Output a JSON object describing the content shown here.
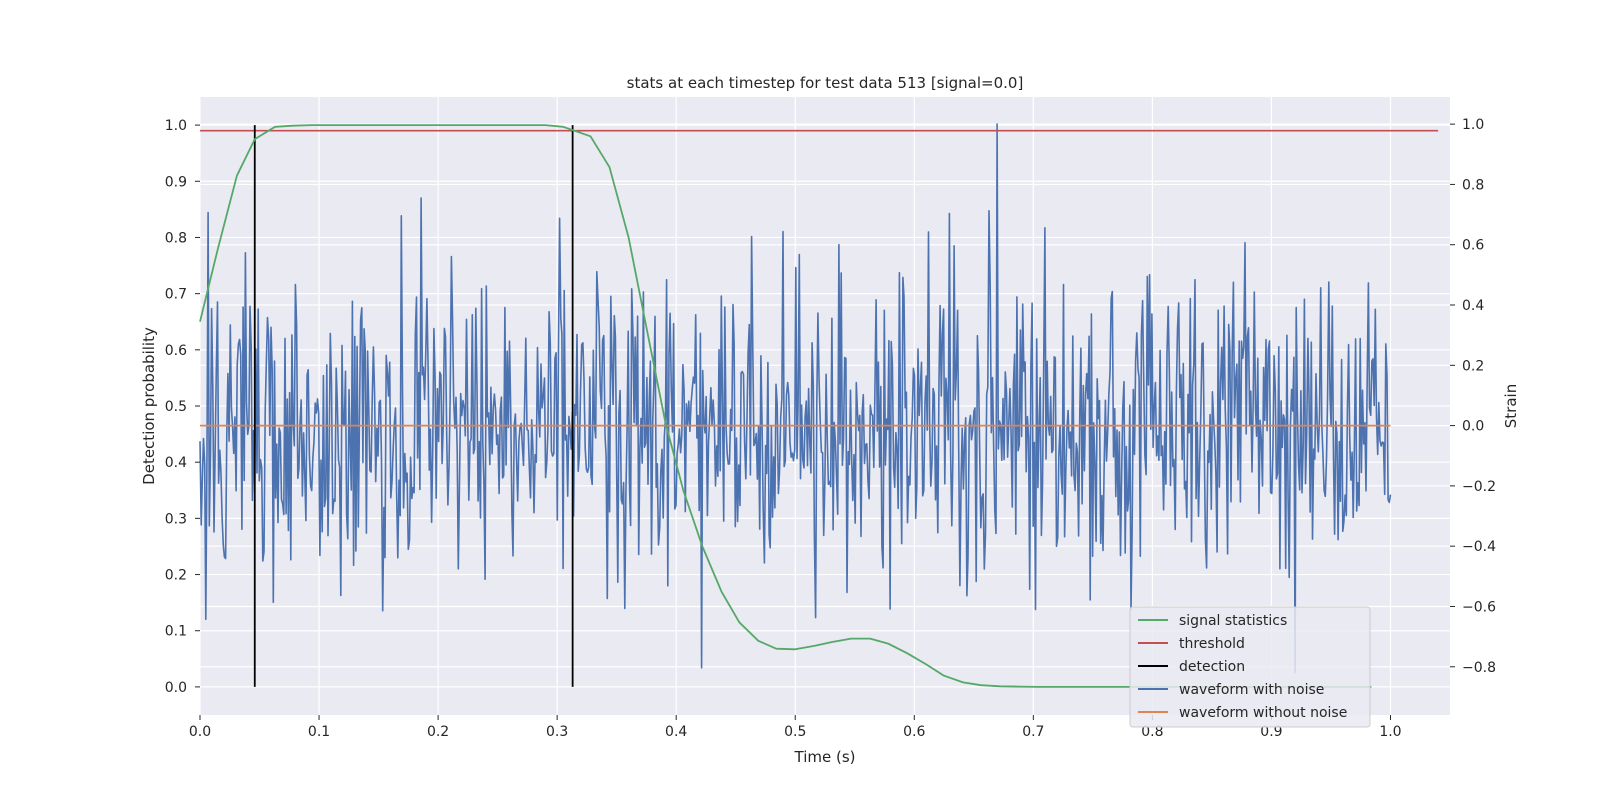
{
  "chart_data": {
    "type": "line",
    "title": "stats at each timestep for test data 513 [signal=0.0]",
    "xlabel": "Time (s)",
    "ylabel": "Detection probability",
    "y2label": "Strain",
    "xlim": [
      0.0,
      1.05
    ],
    "ylim": [
      -0.05,
      1.05
    ],
    "y2lim": [
      -0.96,
      1.09
    ],
    "x_ticks": [
      0.0,
      0.1,
      0.2,
      0.3,
      0.4,
      0.5,
      0.6,
      0.7,
      0.8,
      0.9,
      1.0
    ],
    "x_tick_labels": [
      "0.0",
      "0.1",
      "0.2",
      "0.3",
      "0.4",
      "0.5",
      "0.6",
      "0.7",
      "0.8",
      "0.9",
      "1.0"
    ],
    "y_ticks": [
      0.0,
      0.1,
      0.2,
      0.3,
      0.4,
      0.5,
      0.6,
      0.7,
      0.8,
      0.9,
      1.0
    ],
    "y_tick_labels": [
      "0.0",
      "0.1",
      "0.2",
      "0.3",
      "0.4",
      "0.5",
      "0.6",
      "0.7",
      "0.8",
      "0.9",
      "1.0"
    ],
    "y2_ticks": [
      -0.8,
      -0.6,
      -0.4,
      -0.2,
      0.0,
      0.2,
      0.4,
      0.6,
      0.8,
      1.0
    ],
    "y2_tick_labels": [
      "−0.8",
      "−0.6",
      "−0.4",
      "−0.2",
      "0.0",
      "0.2",
      "0.4",
      "0.6",
      "0.8",
      "1.0"
    ],
    "grid": true,
    "legend_position": "bottom-right",
    "threshold": {
      "name": "threshold",
      "color": "#c44e52",
      "y": 0.99,
      "x_range": [
        0.0,
        1.04
      ]
    },
    "detections": {
      "name": "detection",
      "color": "#000000",
      "x": [
        0.046,
        0.313
      ],
      "y_range": [
        0.0,
        1.0
      ]
    },
    "signal_statistics": {
      "name": "signal statistics",
      "color": "#55a868",
      "x": [
        0.0,
        0.015,
        0.031,
        0.046,
        0.063,
        0.078,
        0.094,
        0.11,
        0.2,
        0.29,
        0.305,
        0.328,
        0.344,
        0.36,
        0.375,
        0.391,
        0.406,
        0.422,
        0.438,
        0.453,
        0.469,
        0.484,
        0.5,
        0.516,
        0.531,
        0.547,
        0.563,
        0.578,
        0.594,
        0.61,
        0.625,
        0.641,
        0.656,
        0.672,
        0.688,
        0.703,
        0.75,
        0.8,
        0.9,
        0.984
      ],
      "y": [
        0.65,
        0.78,
        0.91,
        0.975,
        0.997,
        0.999,
        1.0,
        1.0,
        1.0,
        1.0,
        0.997,
        0.98,
        0.925,
        0.8,
        0.64,
        0.47,
        0.35,
        0.25,
        0.17,
        0.115,
        0.082,
        0.068,
        0.067,
        0.073,
        0.08,
        0.086,
        0.086,
        0.077,
        0.06,
        0.04,
        0.02,
        0.008,
        0.003,
        0.001,
        0.0005,
        0.0,
        0.0,
        0.0,
        0.0,
        0.0
      ]
    },
    "waveform_without_noise": {
      "name": "waveform without noise",
      "color": "#dd8452",
      "y": 0.0,
      "x_range": [
        0.0,
        1.0
      ]
    },
    "waveform_with_noise": {
      "name": "waveform with noise",
      "color": "#4c72b0",
      "x_range": [
        0.0,
        1.0
      ],
      "n_points": 1024,
      "amplitude_std": 0.25,
      "approx_max": 1.0,
      "approx_min": -0.82
    },
    "legend": [
      "signal statistics",
      "threshold",
      "detection",
      "waveform with noise",
      "waveform without noise"
    ]
  }
}
